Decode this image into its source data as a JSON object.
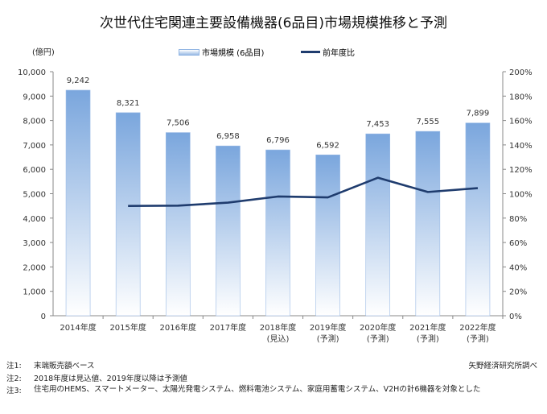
{
  "chart_data": {
    "type": "bar",
    "title": "次世代住宅関連主要設備機器(6品目)市場規模推移と予測",
    "ylabel": "(億円)",
    "ylim": [
      0,
      10000
    ],
    "y2lim": [
      0,
      200
    ],
    "yticks": [
      "0",
      "1,000",
      "2,000",
      "3,000",
      "4,000",
      "5,000",
      "6,000",
      "7,000",
      "8,000",
      "9,000",
      "10,000"
    ],
    "y2ticks": [
      "0%",
      "20%",
      "40%",
      "60%",
      "80%",
      "100%",
      "120%",
      "140%",
      "160%",
      "180%",
      "200%"
    ],
    "categories": [
      [
        "2014年度",
        ""
      ],
      [
        "2015年度",
        ""
      ],
      [
        "2016年度",
        ""
      ],
      [
        "2017年度",
        ""
      ],
      [
        "2018年度",
        "(見込)"
      ],
      [
        "2019年度",
        "(予測)"
      ],
      [
        "2020年度",
        "(予測)"
      ],
      [
        "2021年度",
        "(予測)"
      ],
      [
        "2022年度",
        "(予測)"
      ]
    ],
    "series": [
      {
        "name": "市場規模 (6品目)",
        "type": "bar",
        "axis": "left",
        "values": [
          9242,
          8321,
          7506,
          6958,
          6796,
          6592,
          7453,
          7555,
          7899
        ],
        "labels": [
          "9,242",
          "8,321",
          "7,506",
          "6,958",
          "6,796",
          "6,592",
          "7,453",
          "7,555",
          "7,899"
        ],
        "color": "#8fb4e3"
      },
      {
        "name": "前年度比",
        "type": "line",
        "axis": "right",
        "values": [
          null,
          90.0,
          90.2,
          92.7,
          97.7,
          97.0,
          113.1,
          101.4,
          104.6
        ],
        "color": "#1f3c6e"
      }
    ],
    "legend": "top-center",
    "grid": false
  },
  "notes": [
    {
      "label": "注1:",
      "text": "末端販売額ベース"
    },
    {
      "label": "注2:",
      "text": "2018年度は見込値、2019年度以降は予測値"
    },
    {
      "label": "注3:",
      "text": "住宅用のHEMS、スマートメーター、太陽光発電システム、燃料電池システム、家庭用蓄電システム、V2Hの計6機器を対象とした"
    }
  ],
  "source": "矢野経済研究所調べ"
}
